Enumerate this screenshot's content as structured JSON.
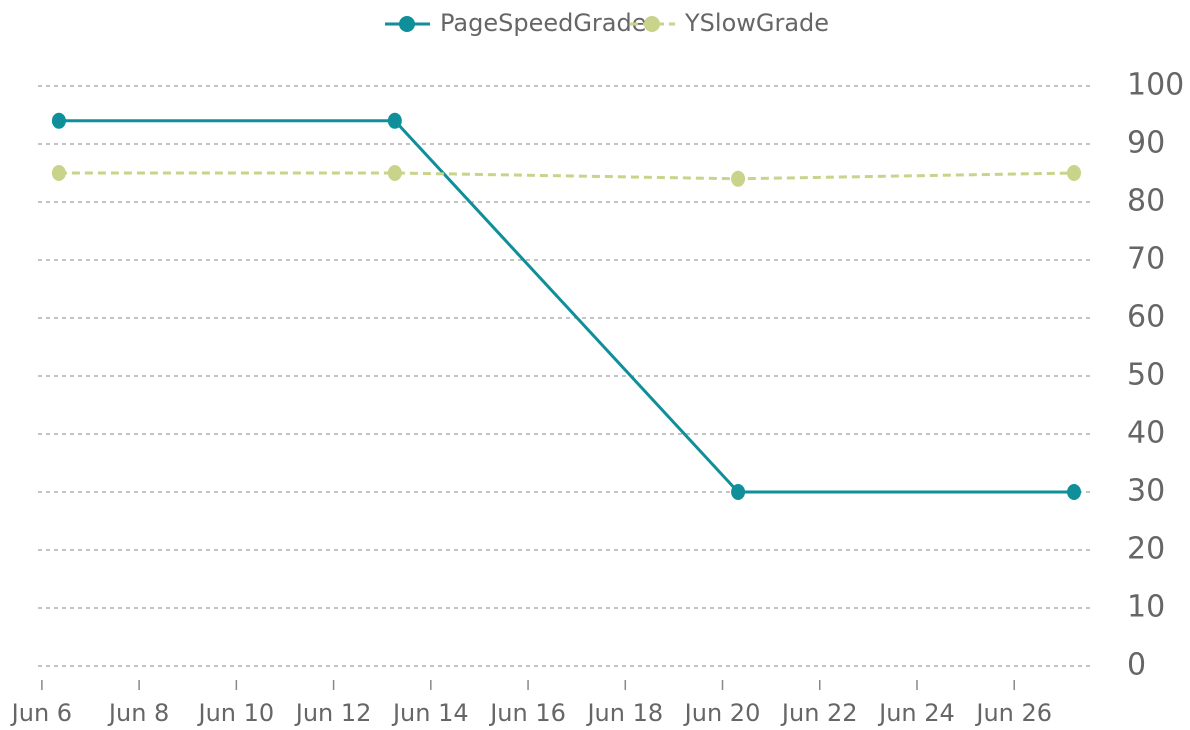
{
  "chart_data": {
    "type": "line",
    "x": [
      6.35,
      13.26,
      20.32,
      27.23
    ],
    "series": [
      {
        "name": "PageSpeedGrade",
        "color": "#0e8f9a",
        "linestyle": "solid",
        "values": [
          94,
          94,
          30,
          30
        ]
      },
      {
        "name": "YSlowGrade",
        "color": "#c9d38a",
        "linestyle": "dashed",
        "values": [
          85,
          85,
          84,
          85
        ]
      }
    ],
    "xlim": [
      5.92,
      27.6
    ],
    "xticks": [
      {
        "value": 6,
        "label": "Jun 6"
      },
      {
        "value": 8,
        "label": "Jun 8"
      },
      {
        "value": 10,
        "label": "Jun 10"
      },
      {
        "value": 12,
        "label": "Jun 12"
      },
      {
        "value": 14,
        "label": "Jun 14"
      },
      {
        "value": 16,
        "label": "Jun 16"
      },
      {
        "value": 18,
        "label": "Jun 18"
      },
      {
        "value": 20,
        "label": "Jun 20"
      },
      {
        "value": 22,
        "label": "Jun 22"
      },
      {
        "value": 24,
        "label": "Jun 24"
      },
      {
        "value": 26,
        "label": "Jun 26"
      }
    ],
    "ylim": [
      0,
      100
    ],
    "yticks": [
      0,
      10,
      20,
      30,
      40,
      50,
      60,
      70,
      80,
      90,
      100
    ],
    "grid": true,
    "y_axis_side": "right",
    "legend": "top"
  }
}
